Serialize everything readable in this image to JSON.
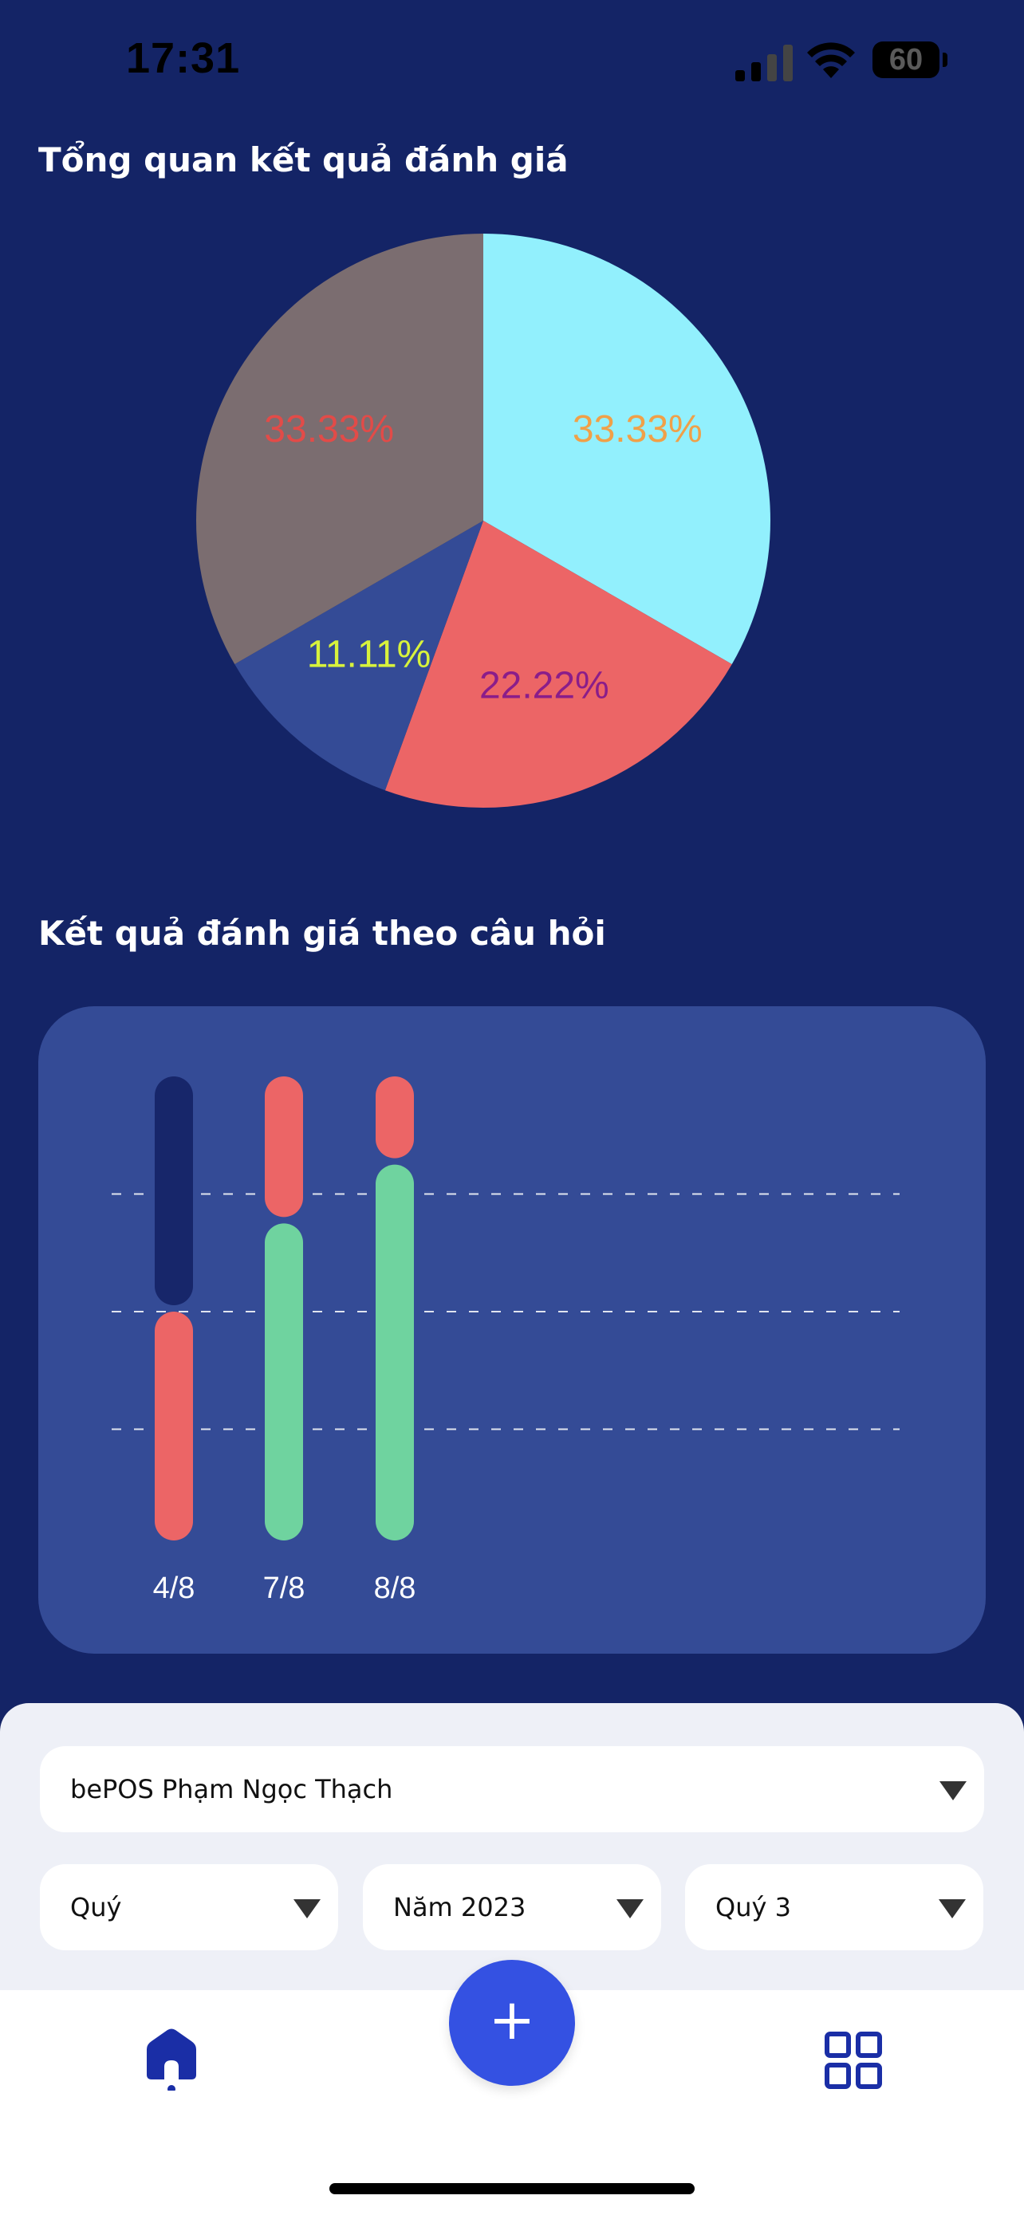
{
  "status_bar": {
    "time": "17:31",
    "battery": "60"
  },
  "overview": {
    "title": "Tổng quan kết quả đánh giá"
  },
  "pie": {
    "slices": [
      {
        "label": "33.33%",
        "value": 33.33,
        "color": "#92f0fd",
        "label_color": "#f0a048"
      },
      {
        "label": "22.22%",
        "value": 22.22,
        "color": "#ec6566",
        "label_color": "#8a1d8a"
      },
      {
        "label": "11.11%",
        "value": 11.11,
        "color": "#344b96",
        "label_color": "#d8f23c"
      },
      {
        "label": "33.33%",
        "value": 33.33,
        "color": "#7b6d70",
        "label_color": "#e24b48"
      }
    ]
  },
  "questions": {
    "title": "Kết quả đánh giá theo câu hỏi"
  },
  "chart_data": {
    "type": "bar",
    "stacked": true,
    "categories": [
      "4/8",
      "7/8",
      "8/8"
    ],
    "ylim": [
      0,
      8
    ],
    "grid": true,
    "series": [
      {
        "color": "#6fd39f",
        "values": [
          0,
          5.5,
          6.5
        ]
      },
      {
        "color": "#ec6566",
        "values": [
          4,
          2.5,
          1.5
        ]
      },
      {
        "color": "#17266a",
        "values": [
          4,
          0,
          0
        ]
      }
    ]
  },
  "filters": {
    "store": "bePOS Phạm Ngọc Thạch",
    "period_type": "Quý",
    "year": "Năm 2023",
    "quarter": "Quý 3"
  },
  "nav": {
    "fab_label": "+"
  }
}
